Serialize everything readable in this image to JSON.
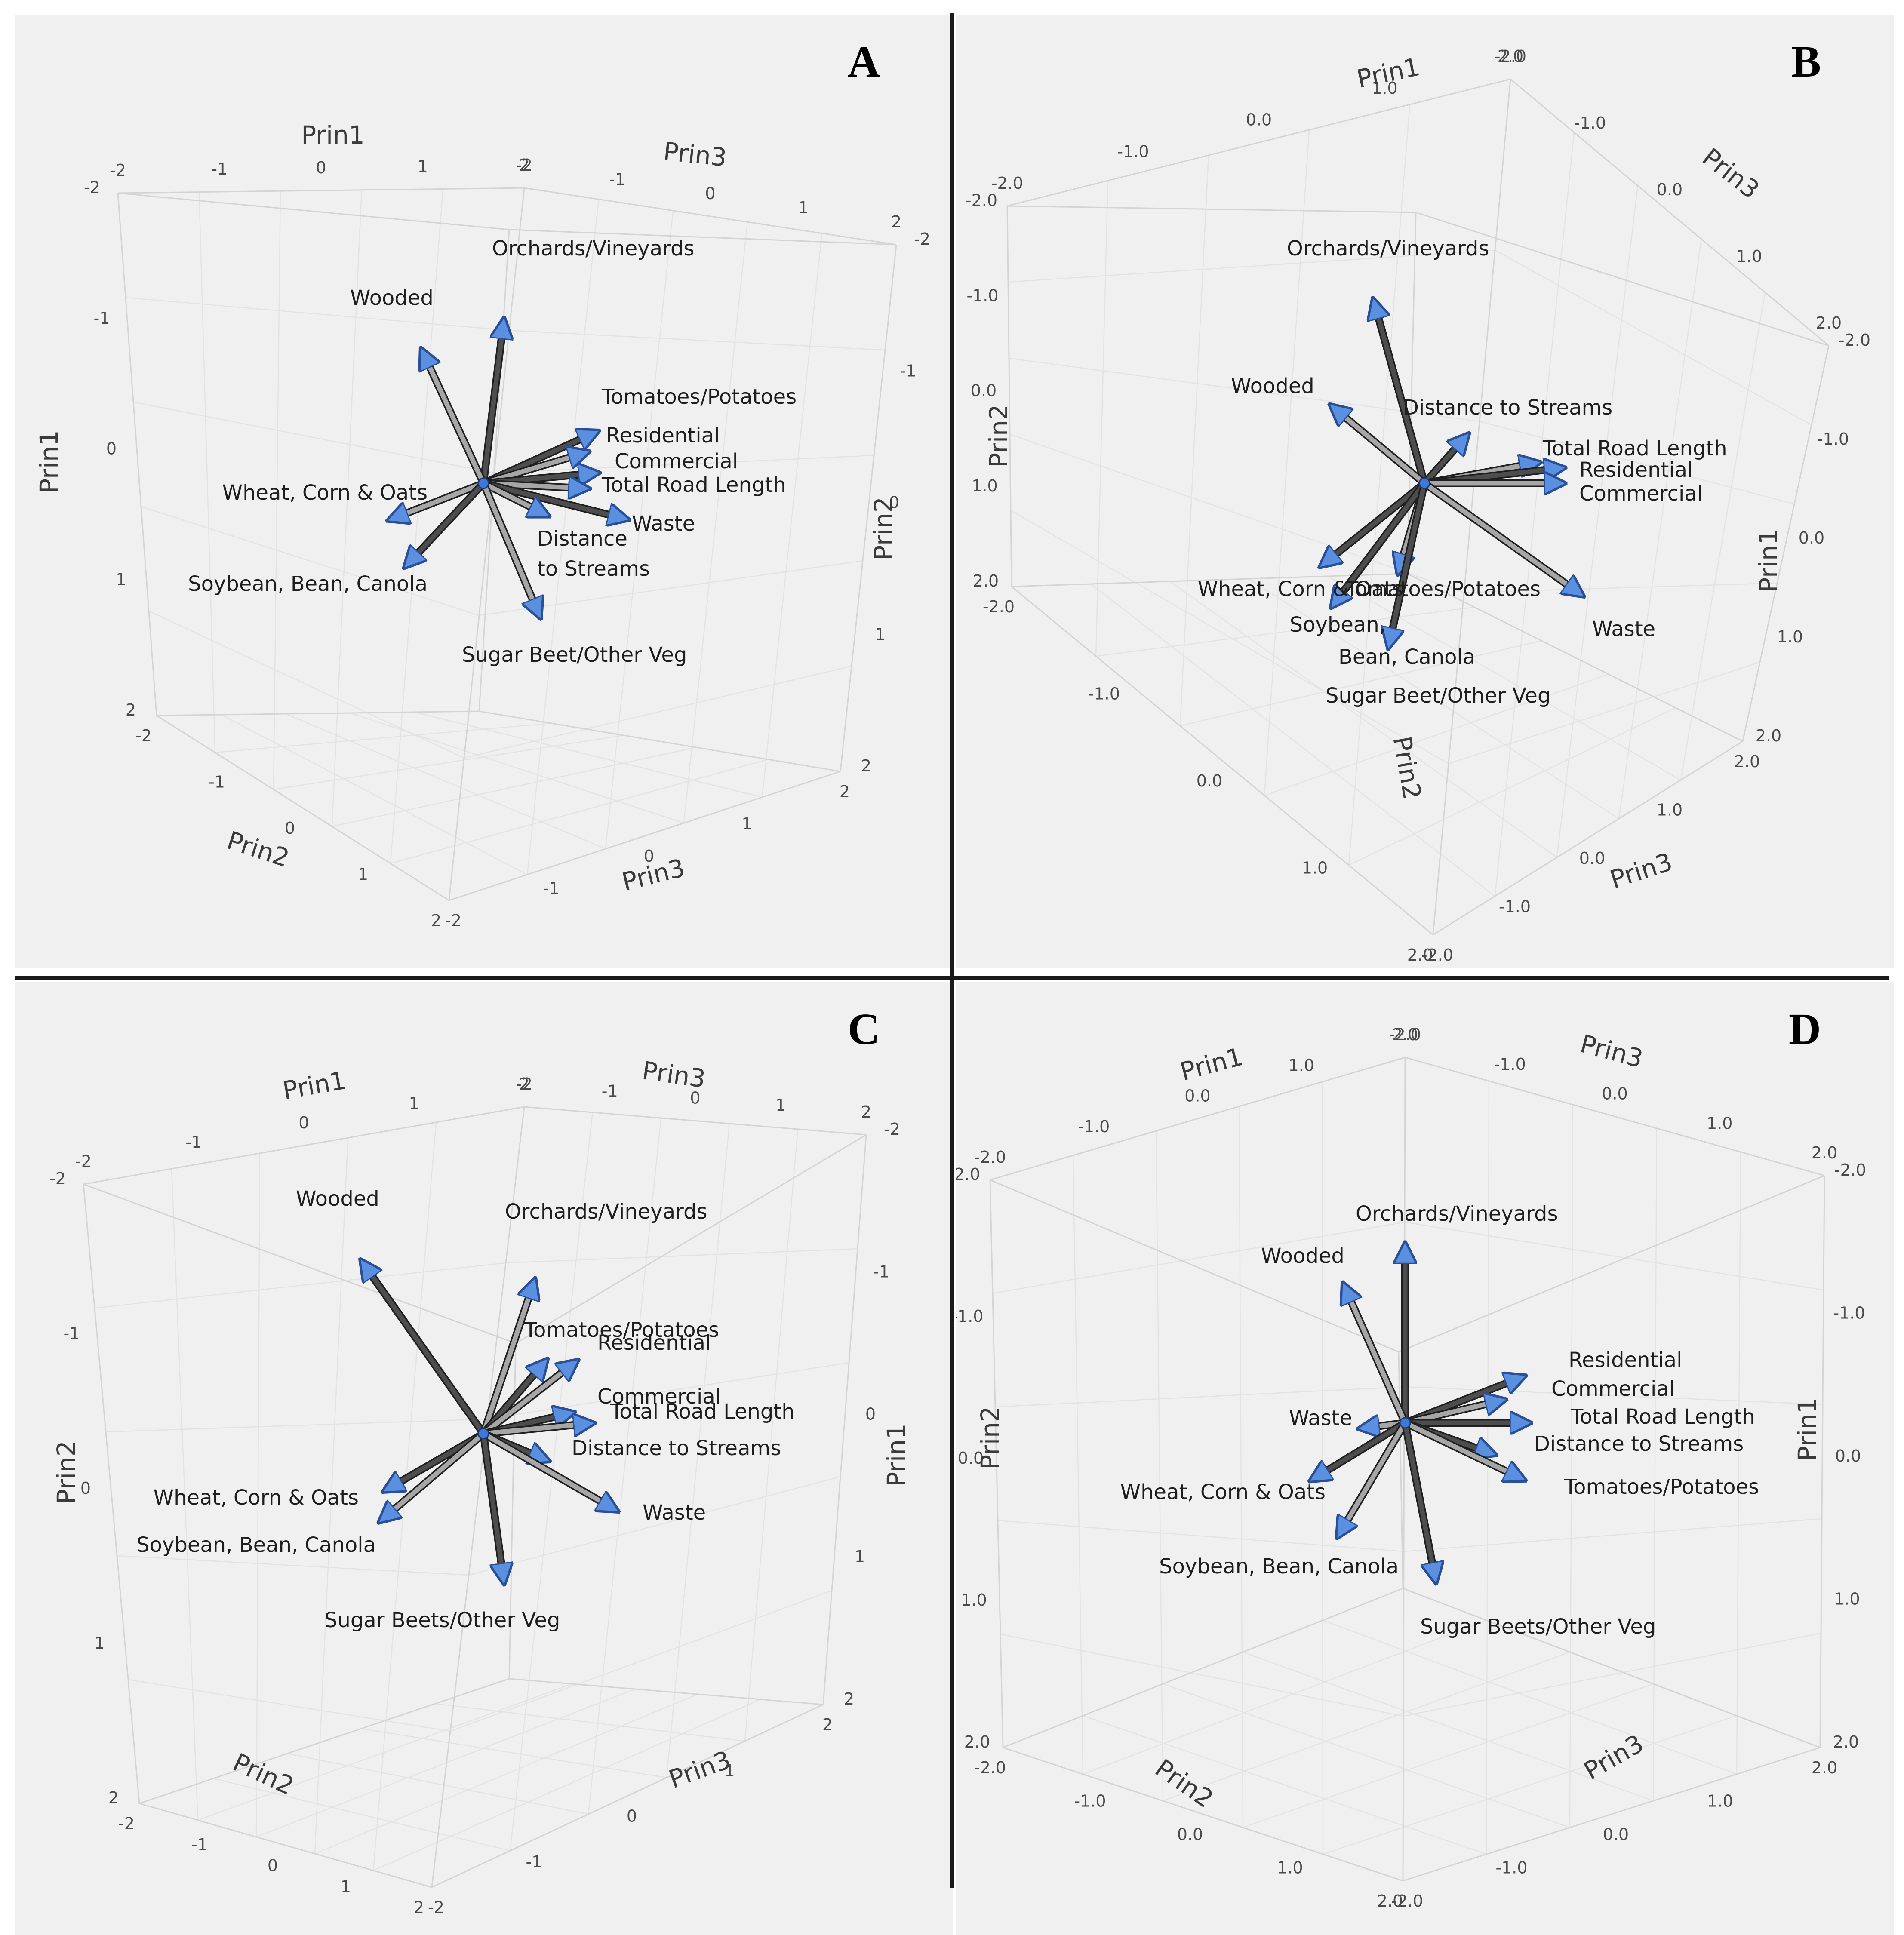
{
  "chart_data": [
    {
      "panel_letter": "A",
      "type": "scatter",
      "description": "3D PCA loading biplot",
      "axis_titles": [
        "Prin1",
        "Prin2",
        "Prin3",
        "Prin1",
        "Prin2",
        "Prin3"
      ],
      "ticks": [
        "-2",
        "-1",
        "0",
        "1",
        "2"
      ],
      "vectors": [
        {
          "label": "Orchards/Vineyards",
          "value": [
            0.2,
            1.6,
            0.0
          ]
        },
        {
          "label": "Wooded",
          "value": [
            -0.6,
            1.3,
            0.0
          ]
        },
        {
          "label": "Tomatoes/Potatoes",
          "value": [
            1.1,
            0.5,
            0.0
          ]
        },
        {
          "label": "Residential",
          "value": [
            1.0,
            0.3,
            0.0
          ]
        },
        {
          "label": "Commercial",
          "value": [
            1.1,
            0.1,
            0.0
          ]
        },
        {
          "label": "Total Road Length",
          "value": [
            1.0,
            -0.05,
            0.0
          ]
        },
        {
          "label": "Waste",
          "value": [
            1.4,
            -0.35,
            0.0
          ]
        },
        {
          "label": "Distance",
          "value": [
            0.6,
            -0.3,
            0.0
          ]
        },
        {
          "label": "to Streams",
          "value": [
            0.0,
            0.0,
            0.0
          ]
        },
        {
          "label": "Wheat, Corn & Oats",
          "value": [
            -0.9,
            -0.35,
            0.0
          ]
        },
        {
          "label": "Soybean, Bean, Canola",
          "value": [
            -0.75,
            -0.8,
            0.0
          ]
        },
        {
          "label": "Sugar Beet/Other Veg",
          "value": [
            0.55,
            -1.3,
            0.0
          ]
        }
      ]
    },
    {
      "panel_letter": "B",
      "type": "scatter",
      "description": "3D PCA loading biplot",
      "axis_titles": [
        "Prin1",
        "Prin2",
        "Prin3",
        "Prin1",
        "Prin2",
        "Prin3"
      ],
      "ticks": [
        "-2.0",
        "-1.0",
        "0.0",
        "1.0",
        "2.0"
      ],
      "vectors": [
        {
          "label": "Orchards/Vineyards",
          "value": [
            -0.5,
            1.8,
            0.0
          ]
        },
        {
          "label": "Wooded",
          "value": [
            -0.9,
            0.75,
            0.0
          ]
        },
        {
          "label": "Distance to Streams",
          "value": [
            0.4,
            0.45,
            0.0
          ]
        },
        {
          "label": "Total Road Length",
          "value": [
            1.1,
            0.2,
            0.0
          ]
        },
        {
          "label": "Residential",
          "value": [
            1.35,
            0.15,
            0.0
          ]
        },
        {
          "label": "Commercial",
          "value": [
            1.35,
            0.0,
            0.0
          ]
        },
        {
          "label": "Wheat, Corn & Oats",
          "value": [
            -1.0,
            -0.8,
            0.0
          ]
        },
        {
          "label": "Tomatoes/Potatoes",
          "value": [
            -0.25,
            -0.85,
            0.0
          ]
        },
        {
          "label": "Soybean,",
          "value": [
            -0.9,
            -1.2,
            0.0
          ]
        },
        {
          "label": "Bean, Canola",
          "value": [
            0.0,
            0.0,
            0.0
          ]
        },
        {
          "label": "Sugar Beet/Other Veg",
          "value": [
            -0.35,
            -1.6,
            0.0
          ]
        },
        {
          "label": "Waste",
          "value": [
            1.55,
            -1.1,
            0.0
          ]
        }
      ]
    },
    {
      "panel_letter": "C",
      "type": "scatter",
      "description": "3D PCA loading biplot",
      "axis_titles": [
        "Prin1",
        "Prin2",
        "Prin3",
        "Prin1",
        "Prin2",
        "Prin3"
      ],
      "ticks": [
        "-2",
        "-1",
        "0",
        "1",
        "2"
      ],
      "vectors": [
        {
          "label": "Wooded",
          "value": [
            -1.2,
            1.7,
            0.0
          ]
        },
        {
          "label": "Orchards/Vineyards",
          "value": [
            0.5,
            1.5,
            0.0
          ]
        },
        {
          "label": "Tomatoes/Potatoes",
          "value": [
            0.6,
            0.7,
            0.0
          ]
        },
        {
          "label": "Residential",
          "value": [
            0.9,
            0.7,
            0.0
          ]
        },
        {
          "label": "Commercial",
          "value": [
            0.85,
            0.2,
            0.0
          ]
        },
        {
          "label": "Total Road Length",
          "value": [
            1.05,
            0.1,
            0.0
          ]
        },
        {
          "label": "Distance to Streams",
          "value": [
            0.6,
            -0.25,
            0.0
          ]
        },
        {
          "label": "Waste",
          "value": [
            1.3,
            -0.75,
            0.0
          ]
        },
        {
          "label": "Wheat, Corn & Oats",
          "value": [
            -0.95,
            -0.55,
            0.0
          ]
        },
        {
          "label": "Soybean, Bean, Canola",
          "value": [
            -1.0,
            -0.85,
            0.0
          ]
        },
        {
          "label": "Sugar Beets/Other Veg",
          "value": [
            0.2,
            -1.45,
            0.0
          ]
        }
      ]
    },
    {
      "panel_letter": "D",
      "type": "scatter",
      "description": "3D PCA loading biplot",
      "axis_titles": [
        "Prin1",
        "Prin2",
        "Prin3",
        "Prin1",
        "Prin2",
        "Prin3"
      ],
      "ticks": [
        "-2.0",
        "-1.0",
        "0.0",
        "1.0",
        "2.0"
      ],
      "vectors": [
        {
          "label": "Orchards/Vineyards",
          "value": [
            0.0,
            1.75,
            0.0
          ]
        },
        {
          "label": "Wooded",
          "value": [
            -0.6,
            1.35,
            0.0
          ]
        },
        {
          "label": "Residential",
          "value": [
            1.15,
            0.45,
            0.0
          ]
        },
        {
          "label": "Commercial",
          "value": [
            0.95,
            0.22,
            0.0
          ]
        },
        {
          "label": "Total Road Length",
          "value": [
            1.2,
            0.0,
            0.0
          ]
        },
        {
          "label": "Waste",
          "value": [
            -0.4,
            -0.05,
            0.0
          ]
        },
        {
          "label": "Distance to Streams",
          "value": [
            0.85,
            -0.3,
            0.0
          ]
        },
        {
          "label": "Tomatoes/Potatoes",
          "value": [
            1.15,
            -0.55,
            0.0
          ]
        },
        {
          "label": "Wheat, Corn & Oats",
          "value": [
            -0.9,
            -0.55,
            0.0
          ]
        },
        {
          "label": "Soybean, Bean, Canola",
          "value": [
            -0.65,
            -1.1,
            0.0
          ]
        },
        {
          "label": "Sugar Beets/Other Veg",
          "value": [
            0.3,
            -1.55,
            0.0
          ]
        }
      ]
    }
  ]
}
